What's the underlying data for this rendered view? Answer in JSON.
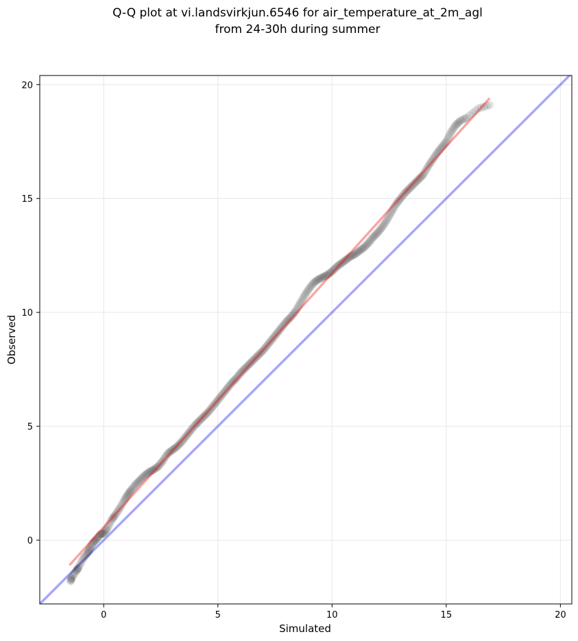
{
  "chart_data": {
    "type": "scatter",
    "title_lines": [
      "Q-Q plot at vi.landsvirkjun.6546 for air_temperature_at_2m_agl",
      "from 24-30h during summer"
    ],
    "xlabel": "Simulated",
    "ylabel": "Observed",
    "xlim": [
      -2.8,
      20.5
    ],
    "ylim": [
      -2.8,
      20.4
    ],
    "xticks": [
      0,
      5,
      10,
      15,
      20
    ],
    "yticks": [
      0,
      5,
      10,
      15,
      20
    ],
    "grid": true,
    "series": [
      {
        "kind": "scatter",
        "color": "#000000",
        "points": [
          [
            -1.45,
            -1.8
          ],
          [
            -1.4,
            -1.65
          ],
          [
            -1.2,
            -1.35
          ],
          [
            -1.1,
            -1.2
          ],
          [
            -0.9,
            -0.8
          ],
          [
            -0.7,
            -0.55
          ],
          [
            -0.6,
            -0.35
          ],
          [
            -0.45,
            -0.1
          ],
          [
            -0.3,
            0.05
          ],
          [
            -0.15,
            0.25
          ],
          [
            0.0,
            0.3
          ],
          [
            0.15,
            0.5
          ],
          [
            0.35,
            0.9
          ],
          [
            0.5,
            1.1
          ],
          [
            0.7,
            1.4
          ],
          [
            0.9,
            1.75
          ],
          [
            1.05,
            2.0
          ],
          [
            1.2,
            2.2
          ],
          [
            1.4,
            2.45
          ],
          [
            1.6,
            2.65
          ],
          [
            1.8,
            2.85
          ],
          [
            2.0,
            3.0
          ],
          [
            2.2,
            3.1
          ],
          [
            2.4,
            3.25
          ],
          [
            2.6,
            3.5
          ],
          [
            2.8,
            3.8
          ],
          [
            3.0,
            3.95
          ],
          [
            3.2,
            4.1
          ],
          [
            3.4,
            4.3
          ],
          [
            3.6,
            4.55
          ],
          [
            3.8,
            4.8
          ],
          [
            4.0,
            5.05
          ],
          [
            4.2,
            5.25
          ],
          [
            4.4,
            5.45
          ],
          [
            4.6,
            5.65
          ],
          [
            4.8,
            5.9
          ],
          [
            5.0,
            6.15
          ],
          [
            5.2,
            6.4
          ],
          [
            5.4,
            6.65
          ],
          [
            5.6,
            6.9
          ],
          [
            5.8,
            7.1
          ],
          [
            6.0,
            7.35
          ],
          [
            6.2,
            7.55
          ],
          [
            6.4,
            7.75
          ],
          [
            6.6,
            7.95
          ],
          [
            6.8,
            8.15
          ],
          [
            7.0,
            8.35
          ],
          [
            7.2,
            8.6
          ],
          [
            7.4,
            8.85
          ],
          [
            7.6,
            9.1
          ],
          [
            7.8,
            9.35
          ],
          [
            8.0,
            9.6
          ],
          [
            8.2,
            9.8
          ],
          [
            8.4,
            10.05
          ],
          [
            8.6,
            10.4
          ],
          [
            8.8,
            10.75
          ],
          [
            9.0,
            11.05
          ],
          [
            9.2,
            11.3
          ],
          [
            9.4,
            11.45
          ],
          [
            9.6,
            11.55
          ],
          [
            9.8,
            11.65
          ],
          [
            10.0,
            11.8
          ],
          [
            10.2,
            12.0
          ],
          [
            10.4,
            12.15
          ],
          [
            10.6,
            12.3
          ],
          [
            10.8,
            12.45
          ],
          [
            11.0,
            12.55
          ],
          [
            11.2,
            12.7
          ],
          [
            11.4,
            12.85
          ],
          [
            11.6,
            13.05
          ],
          [
            11.8,
            13.3
          ],
          [
            12.0,
            13.5
          ],
          [
            12.2,
            13.75
          ],
          [
            12.4,
            14.05
          ],
          [
            12.6,
            14.4
          ],
          [
            12.8,
            14.75
          ],
          [
            13.0,
            15.0
          ],
          [
            13.2,
            15.25
          ],
          [
            13.4,
            15.45
          ],
          [
            13.6,
            15.65
          ],
          [
            13.8,
            15.85
          ],
          [
            14.0,
            16.05
          ],
          [
            14.2,
            16.4
          ],
          [
            14.4,
            16.7
          ],
          [
            14.6,
            17.0
          ],
          [
            14.8,
            17.25
          ],
          [
            15.0,
            17.5
          ],
          [
            15.2,
            17.9
          ],
          [
            15.4,
            18.2
          ],
          [
            15.6,
            18.4
          ],
          [
            15.9,
            18.55
          ],
          [
            16.4,
            18.95
          ],
          [
            16.9,
            19.1
          ]
        ]
      },
      {
        "kind": "reference-line",
        "color": "#0000ee",
        "from": [
          -2.8,
          -2.8
        ],
        "to": [
          20.5,
          20.5
        ]
      },
      {
        "kind": "fit-line",
        "color": "#ee0000",
        "from": [
          -1.5,
          -1.1
        ],
        "to": [
          16.9,
          19.4
        ]
      }
    ]
  }
}
